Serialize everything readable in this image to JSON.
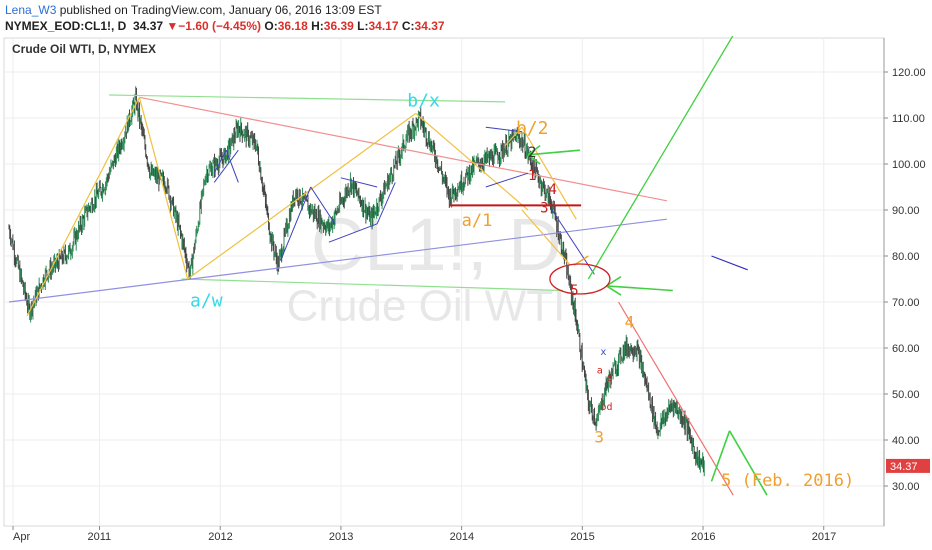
{
  "header": {
    "author": "Lena_W3",
    "published_text": " published on TradingView.com, January 06, 2016 13:09 EST",
    "symbol": "NYMEX_EOD:CL1!, D",
    "last": "34.37",
    "change": "−1.60 (−4.45%)",
    "o_label": "O:",
    "o_value": "36.18",
    "h_label": "H:",
    "h_value": "36.39",
    "l_label": "L:",
    "l_value": "34.17",
    "c_label": "C:",
    "c_value": "34.37",
    "down_arrow": "▼"
  },
  "chart_data": {
    "type": "candlestick",
    "title": "Crude Oil WTI, D, NYMEX",
    "watermark_symbol": "CL1!, D",
    "watermark_name": "Crude Oil WTI",
    "xlabel": "",
    "ylabel": "",
    "x_tick_labels": [
      "Apr",
      "2011",
      "2012",
      "2013",
      "2014",
      "2015",
      "2016",
      "2017"
    ],
    "y_ticks": [
      30,
      40,
      50,
      60,
      70,
      80,
      90,
      100,
      110,
      120
    ],
    "y_tick_labels": [
      "30.00",
      "40.00",
      "50.00",
      "60.00",
      "70.00",
      "80.00",
      "90.00",
      "100.00",
      "110.00",
      "120.00"
    ],
    "ylim": [
      24,
      126
    ],
    "xlim": [
      2010.25,
      2017.5
    ],
    "last_price_label": "34.37",
    "series": [
      {
        "values_sampled": [
          {
            "x": 2010.25,
            "y": 86
          },
          {
            "x": 2010.33,
            "y": 77
          },
          {
            "x": 2010.42,
            "y": 68
          },
          {
            "x": 2010.55,
            "y": 76
          },
          {
            "x": 2010.75,
            "y": 81
          },
          {
            "x": 2010.9,
            "y": 90
          },
          {
            "x": 2011.05,
            "y": 96
          },
          {
            "x": 2011.2,
            "y": 106
          },
          {
            "x": 2011.3,
            "y": 114
          },
          {
            "x": 2011.42,
            "y": 98
          },
          {
            "x": 2011.55,
            "y": 96
          },
          {
            "x": 2011.68,
            "y": 84
          },
          {
            "x": 2011.75,
            "y": 76
          },
          {
            "x": 2011.88,
            "y": 98
          },
          {
            "x": 2012.05,
            "y": 102
          },
          {
            "x": 2012.15,
            "y": 108
          },
          {
            "x": 2012.3,
            "y": 104
          },
          {
            "x": 2012.42,
            "y": 84
          },
          {
            "x": 2012.48,
            "y": 78
          },
          {
            "x": 2012.62,
            "y": 94
          },
          {
            "x": 2012.75,
            "y": 90
          },
          {
            "x": 2012.9,
            "y": 86
          },
          {
            "x": 2013.08,
            "y": 96
          },
          {
            "x": 2013.25,
            "y": 88
          },
          {
            "x": 2013.42,
            "y": 98
          },
          {
            "x": 2013.55,
            "y": 106
          },
          {
            "x": 2013.65,
            "y": 110
          },
          {
            "x": 2013.78,
            "y": 102
          },
          {
            "x": 2013.9,
            "y": 93
          },
          {
            "x": 2014.0,
            "y": 96
          },
          {
            "x": 2014.12,
            "y": 100
          },
          {
            "x": 2014.3,
            "y": 102
          },
          {
            "x": 2014.45,
            "y": 106
          },
          {
            "x": 2014.5,
            "y": 105
          },
          {
            "x": 2014.62,
            "y": 98
          },
          {
            "x": 2014.75,
            "y": 91
          },
          {
            "x": 2014.85,
            "y": 80
          },
          {
            "x": 2014.95,
            "y": 66
          },
          {
            "x": 2015.05,
            "y": 48
          },
          {
            "x": 2015.12,
            "y": 44
          },
          {
            "x": 2015.2,
            "y": 52
          },
          {
            "x": 2015.35,
            "y": 60
          },
          {
            "x": 2015.45,
            "y": 60
          },
          {
            "x": 2015.55,
            "y": 50
          },
          {
            "x": 2015.62,
            "y": 42
          },
          {
            "x": 2015.75,
            "y": 48
          },
          {
            "x": 2015.85,
            "y": 44
          },
          {
            "x": 2015.95,
            "y": 36
          },
          {
            "x": 2016.01,
            "y": 34.37
          }
        ]
      }
    ],
    "annotations": [
      {
        "text": "b/x",
        "x": 2013.55,
        "y": 112.5,
        "color": "#33d9e8",
        "size": 18
      },
      {
        "text": "a/w",
        "x": 2011.75,
        "y": 69,
        "color": "#33d9e8",
        "size": 18
      },
      {
        "text": "b/2",
        "x": 2014.45,
        "y": 106.5,
        "color": "#f0a030",
        "size": 18
      },
      {
        "text": "a/1",
        "x": 2014.0,
        "y": 86.5,
        "color": "#f0a030",
        "size": 17
      },
      {
        "text": "2",
        "x": 2014.55,
        "y": 101.5,
        "color": "#333333",
        "size": 14
      },
      {
        "text": "1",
        "x": 2014.55,
        "y": 96.5,
        "color": "#c02020",
        "size": 14
      },
      {
        "text": "4",
        "x": 2014.72,
        "y": 93.5,
        "color": "#c02020",
        "size": 14
      },
      {
        "text": "3",
        "x": 2014.65,
        "y": 89.5,
        "color": "#c02020",
        "size": 14
      },
      {
        "text": "5",
        "x": 2014.9,
        "y": 71.5,
        "color": "#c02020",
        "size": 14
      },
      {
        "text": "4",
        "x": 2015.35,
        "y": 64.5,
        "color": "#f0a030",
        "size": 16
      },
      {
        "text": "3",
        "x": 2015.1,
        "y": 39.5,
        "color": "#f0a030",
        "size": 16
      },
      {
        "text": "x",
        "x": 2015.15,
        "y": 58.5,
        "color": "#3344cc",
        "size": 10
      },
      {
        "text": "a",
        "x": 2015.12,
        "y": 54.5,
        "color": "#d02020",
        "size": 10
      },
      {
        "text": "e",
        "x": 2015.2,
        "y": 52.8,
        "color": "#d02020",
        "size": 10
      },
      {
        "text": "bd",
        "x": 2015.15,
        "y": 46.5,
        "color": "#d02020",
        "size": 10
      },
      {
        "text": "5 (Feb. 2016)",
        "x": 2016.15,
        "y": 30,
        "color": "#f0a030",
        "size": 17
      }
    ]
  }
}
